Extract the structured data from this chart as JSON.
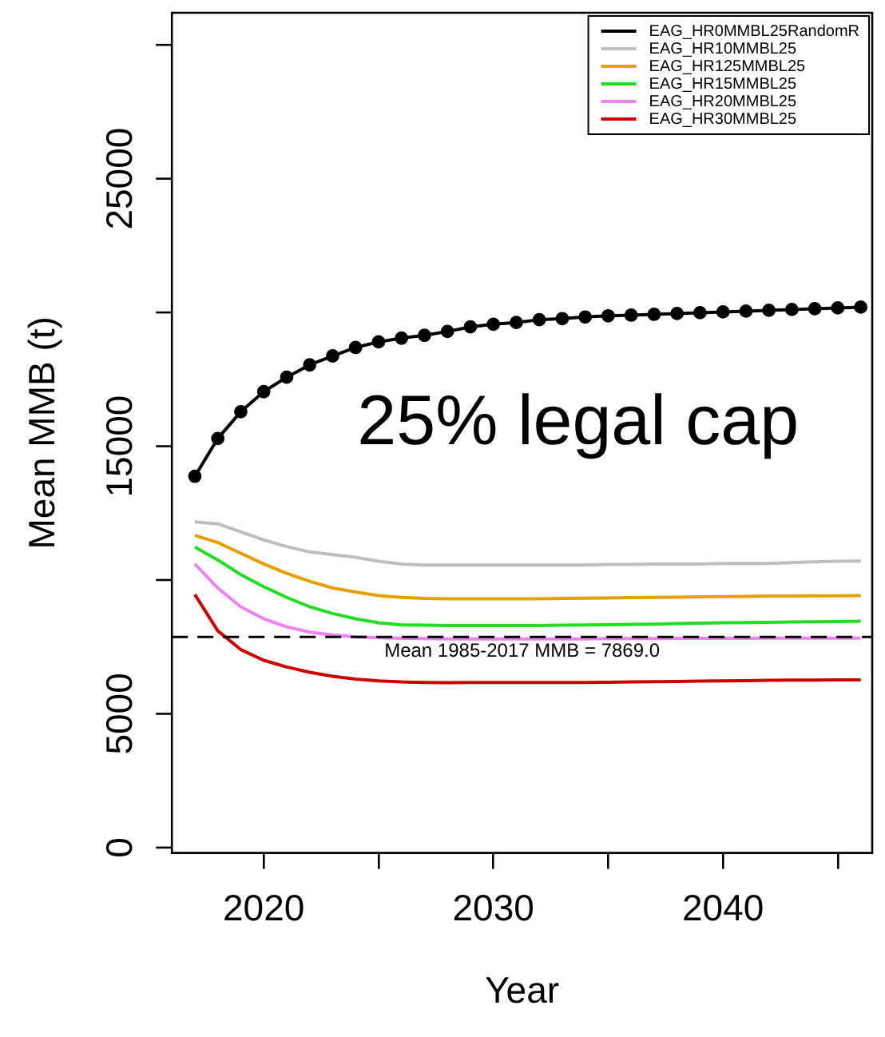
{
  "chart_data": {
    "type": "line",
    "xlabel": "Year",
    "ylabel": "Mean MMB (t)",
    "x": [
      2017,
      2018,
      2019,
      2020,
      2021,
      2022,
      2023,
      2024,
      2025,
      2026,
      2027,
      2028,
      2029,
      2030,
      2031,
      2032,
      2033,
      2034,
      2035,
      2036,
      2037,
      2038,
      2039,
      2040,
      2041,
      2042,
      2043,
      2044,
      2045,
      2046
    ],
    "series": [
      {
        "name": "EAG_HR0MMBL25RandomR",
        "color": "#000000",
        "marker": "circle",
        "values": [
          13875,
          15290,
          16290,
          17040,
          17580,
          18040,
          18375,
          18690,
          18900,
          19040,
          19145,
          19290,
          19460,
          19560,
          19625,
          19730,
          19770,
          19830,
          19875,
          19900,
          19930,
          19960,
          19990,
          20020,
          20050,
          20080,
          20110,
          20140,
          20170,
          20200
        ]
      },
      {
        "name": "EAG_HR10MMBL25",
        "color": "#bebebe",
        "marker": "none",
        "values": [
          12170,
          12100,
          11800,
          11500,
          11250,
          11050,
          10950,
          10850,
          10700,
          10600,
          10560,
          10560,
          10560,
          10560,
          10560,
          10560,
          10560,
          10560,
          10580,
          10580,
          10600,
          10600,
          10600,
          10620,
          10620,
          10620,
          10650,
          10680,
          10700,
          10710
        ]
      },
      {
        "name": "EAG_HR125MMBL25",
        "color": "#e69f00",
        "marker": "none",
        "values": [
          11670,
          11400,
          11000,
          10600,
          10250,
          9950,
          9700,
          9550,
          9420,
          9350,
          9310,
          9300,
          9300,
          9300,
          9300,
          9300,
          9310,
          9320,
          9330,
          9340,
          9350,
          9360,
          9370,
          9380,
          9390,
          9400,
          9400,
          9410,
          9410,
          9415
        ]
      },
      {
        "name": "EAG_HR15MMBL25",
        "color": "#22dd22",
        "marker": "none",
        "values": [
          11230,
          10750,
          10200,
          9750,
          9350,
          9000,
          8750,
          8550,
          8400,
          8320,
          8310,
          8300,
          8300,
          8300,
          8300,
          8300,
          8310,
          8320,
          8330,
          8340,
          8350,
          8370,
          8390,
          8400,
          8410,
          8420,
          8430,
          8440,
          8450,
          8460
        ]
      },
      {
        "name": "EAG_HR20MMBL25",
        "color": "#ee82ee",
        "marker": "none",
        "values": [
          10600,
          9700,
          9000,
          8550,
          8250,
          8050,
          7950,
          7870,
          7840,
          7820,
          7810,
          7800,
          7800,
          7800,
          7800,
          7800,
          7800,
          7800,
          7810,
          7810,
          7810,
          7820,
          7820,
          7820,
          7820,
          7830,
          7830,
          7830,
          7830,
          7830
        ]
      },
      {
        "name": "EAG_HR30MMBL25",
        "color": "#cc0000",
        "marker": "none",
        "values": [
          9460,
          8100,
          7400,
          7000,
          6750,
          6550,
          6400,
          6300,
          6230,
          6190,
          6170,
          6160,
          6170,
          6170,
          6170,
          6170,
          6170,
          6170,
          6180,
          6190,
          6200,
          6210,
          6220,
          6230,
          6240,
          6250,
          6260,
          6260,
          6270,
          6270
        ]
      }
    ],
    "xlim": [
      2016,
      2046.5
    ],
    "xticks": [
      2020,
      {
        "value": 2025,
        "label": null
      },
      2030,
      {
        "value": 2035,
        "label": null
      },
      2040,
      {
        "value": 2045,
        "label": null
      }
    ],
    "ylim": [
      -200,
      31200
    ],
    "yticks": [
      0,
      5000,
      {
        "value": 10000,
        "label": null
      },
      15000,
      {
        "value": 20000,
        "label": null
      },
      25000,
      {
        "value": 30000,
        "label": null
      }
    ],
    "ref_lines": [
      {
        "axis": "y",
        "value": 7869,
        "label": "Mean 1985-2017 MMB = 7869.0",
        "color": "#000000",
        "line_style": "dashed"
      }
    ],
    "annotations": [
      "25% legal cap"
    ],
    "grid": false,
    "legend": "top right"
  }
}
